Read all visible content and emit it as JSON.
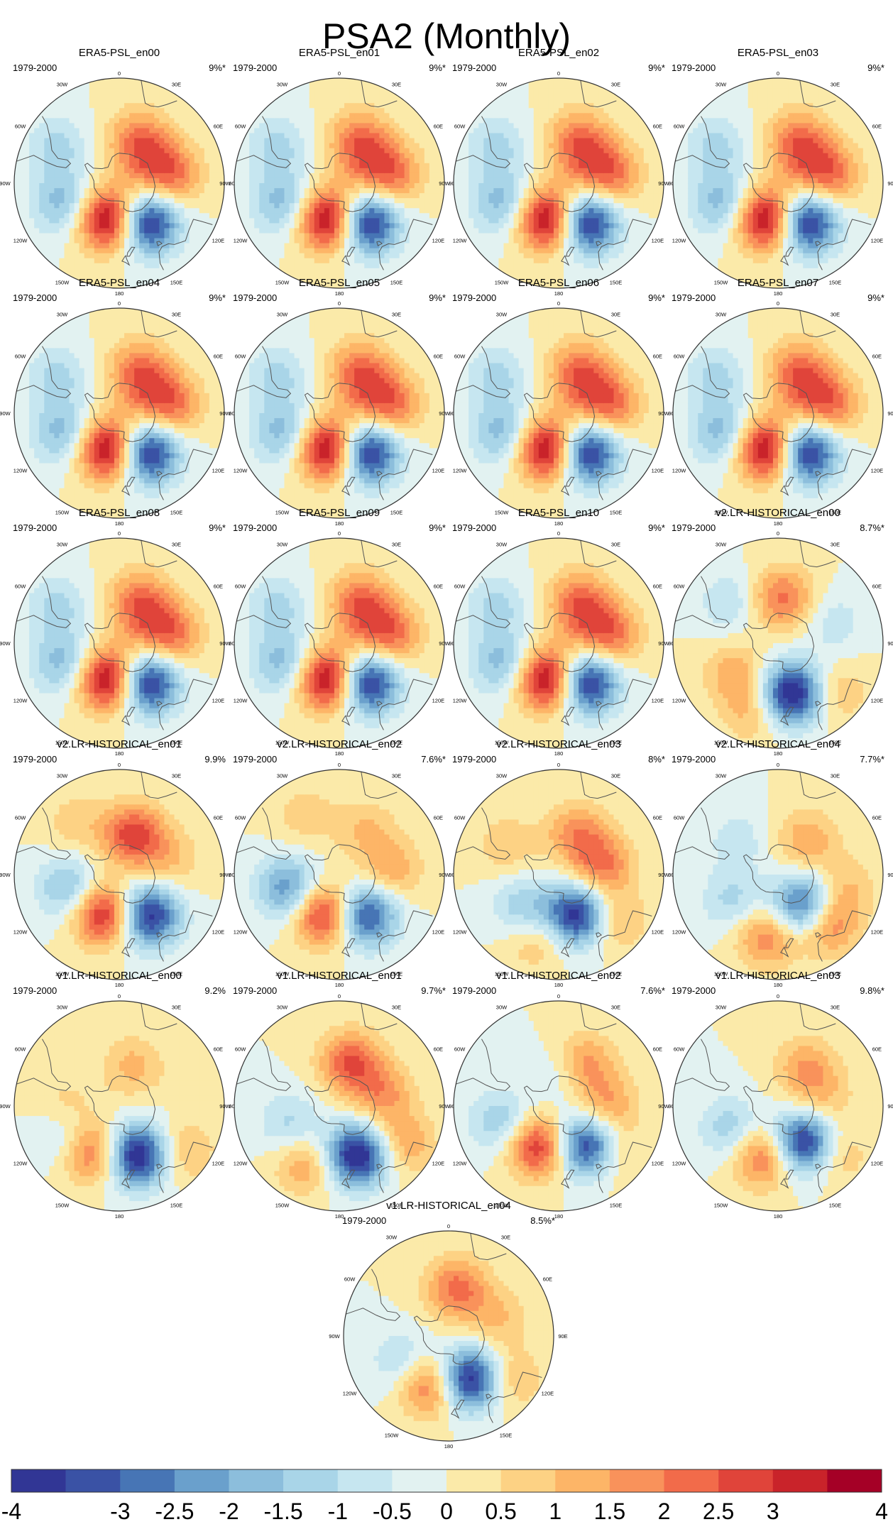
{
  "title": "PSA2 (Monthly)",
  "chart_data": {
    "type": "polar-stereographic contour map (EOF pattern)",
    "title": "PSA2 (Monthly)",
    "region": "Southern Hemisphere",
    "longitude_labels": [
      "0",
      "30E",
      "60E",
      "90E",
      "120E",
      "150E",
      "180",
      "150W",
      "120W",
      "90W",
      "60W",
      "30W"
    ],
    "panels": [
      {
        "name": "ERA5-PSL_en00",
        "period": "1979-2000",
        "variance": "9%*",
        "pattern": "era5"
      },
      {
        "name": "ERA5-PSL_en01",
        "period": "1979-2000",
        "variance": "9%*",
        "pattern": "era5"
      },
      {
        "name": "ERA5-PSL_en02",
        "period": "1979-2000",
        "variance": "9%*",
        "pattern": "era5"
      },
      {
        "name": "ERA5-PSL_en03",
        "period": "1979-2000",
        "variance": "9%*",
        "pattern": "era5"
      },
      {
        "name": "ERA5-PSL_en04",
        "period": "1979-2000",
        "variance": "9%*",
        "pattern": "era5"
      },
      {
        "name": "ERA5-PSL_en05",
        "period": "1979-2000",
        "variance": "9%*",
        "pattern": "era5"
      },
      {
        "name": "ERA5-PSL_en06",
        "period": "1979-2000",
        "variance": "9%*",
        "pattern": "era5"
      },
      {
        "name": "ERA5-PSL_en07",
        "period": "1979-2000",
        "variance": "9%*",
        "pattern": "era5"
      },
      {
        "name": "ERA5-PSL_en08",
        "period": "1979-2000",
        "variance": "9%*",
        "pattern": "era5"
      },
      {
        "name": "ERA5-PSL_en09",
        "period": "1979-2000",
        "variance": "9%*",
        "pattern": "era5"
      },
      {
        "name": "ERA5-PSL_en10",
        "period": "1979-2000",
        "variance": "9%*",
        "pattern": "era5"
      },
      {
        "name": "v2.LR-HISTORICAL_en00",
        "period": "1979-2000",
        "variance": "8.7%*",
        "pattern": "v2en00"
      },
      {
        "name": "v2.LR-HISTORICAL_en01",
        "period": "1979-2000",
        "variance": "9.9%",
        "pattern": "v2en01"
      },
      {
        "name": "v2.LR-HISTORICAL_en02",
        "period": "1979-2000",
        "variance": "7.6%*",
        "pattern": "v2en02"
      },
      {
        "name": "v2.LR-HISTORICAL_en03",
        "period": "1979-2000",
        "variance": "8%*",
        "pattern": "v2en03"
      },
      {
        "name": "v2.LR-HISTORICAL_en04",
        "period": "1979-2000",
        "variance": "7.7%*",
        "pattern": "v2en04"
      },
      {
        "name": "v1.LR-HISTORICAL_en00",
        "period": "1979-2000",
        "variance": "9.2%",
        "pattern": "v1en00"
      },
      {
        "name": "v1.LR-HISTORICAL_en01",
        "period": "1979-2000",
        "variance": "9.7%*",
        "pattern": "v1en01"
      },
      {
        "name": "v1.LR-HISTORICAL_en02",
        "period": "1979-2000",
        "variance": "7.6%*",
        "pattern": "v1en02"
      },
      {
        "name": "v1.LR-HISTORICAL_en03",
        "period": "1979-2000",
        "variance": "9.8%*",
        "pattern": "v1en03"
      },
      {
        "name": "v1.LR-HISTORICAL_en04",
        "period": "1979-2000",
        "variance": "8.5%*",
        "pattern": "v1en04"
      }
    ],
    "patterns": {
      "era5": [
        {
          "lon": 145,
          "lat": -58,
          "value": -4.3
        },
        {
          "lon": 195,
          "lat": -65,
          "value": 4.3
        },
        {
          "lon": 25,
          "lat": -58,
          "value": 2.0
        },
        {
          "lon": 80,
          "lat": -55,
          "value": 2.1
        },
        {
          "lon": 250,
          "lat": -50,
          "value": -1.8
        },
        {
          "lon": 300,
          "lat": -42,
          "value": -1.2
        },
        {
          "lon": 60,
          "lat": -70,
          "value": 0.8
        }
      ],
      "v2en00": [
        {
          "lon": 165,
          "lat": -55,
          "value": -4.3
        },
        {
          "lon": 235,
          "lat": -55,
          "value": 1.3
        },
        {
          "lon": 310,
          "lat": -48,
          "value": -1.0
        },
        {
          "lon": 5,
          "lat": -60,
          "value": 2.2
        },
        {
          "lon": 70,
          "lat": -50,
          "value": -0.8
        },
        {
          "lon": 130,
          "lat": -38,
          "value": 1.0
        },
        {
          "lon": 200,
          "lat": -42,
          "value": 1.2
        }
      ],
      "v2en01": [
        {
          "lon": 145,
          "lat": -57,
          "value": -4.0
        },
        {
          "lon": 200,
          "lat": -62,
          "value": 3.5
        },
        {
          "lon": 20,
          "lat": -62,
          "value": 2.8
        },
        {
          "lon": 255,
          "lat": -55,
          "value": -1.8
        },
        {
          "lon": 75,
          "lat": -55,
          "value": 1.0
        },
        {
          "lon": 320,
          "lat": -45,
          "value": 0.8
        }
      ],
      "v2en02": [
        {
          "lon": 148,
          "lat": -58,
          "value": -3.6
        },
        {
          "lon": 200,
          "lat": -62,
          "value": 3.4
        },
        {
          "lon": 255,
          "lat": -55,
          "value": -2.5
        },
        {
          "lon": 30,
          "lat": -55,
          "value": 1.0
        },
        {
          "lon": 85,
          "lat": -55,
          "value": 1.4
        },
        {
          "lon": 330,
          "lat": -45,
          "value": 0.8
        }
      ],
      "v2en03": [
        {
          "lon": 155,
          "lat": -60,
          "value": -4.0
        },
        {
          "lon": 225,
          "lat": -58,
          "value": -1.6
        },
        {
          "lon": 200,
          "lat": -45,
          "value": 1.2
        },
        {
          "lon": 130,
          "lat": -42,
          "value": 1.4
        },
        {
          "lon": 25,
          "lat": -60,
          "value": 1.8
        },
        {
          "lon": 80,
          "lat": -60,
          "value": 2.0
        },
        {
          "lon": 300,
          "lat": -50,
          "value": 0.9
        }
      ],
      "v2en04": [
        {
          "lon": 140,
          "lat": -62,
          "value": -3.8
        },
        {
          "lon": 135,
          "lat": -45,
          "value": 2.6
        },
        {
          "lon": 190,
          "lat": -48,
          "value": 2.0
        },
        {
          "lon": 240,
          "lat": -55,
          "value": -1.2
        },
        {
          "lon": 40,
          "lat": -60,
          "value": 1.4
        },
        {
          "lon": 310,
          "lat": -55,
          "value": -0.8
        },
        {
          "lon": 100,
          "lat": -45,
          "value": 1.0
        }
      ],
      "v1en00": [
        {
          "lon": 160,
          "lat": -55,
          "value": -4.3
        },
        {
          "lon": 210,
          "lat": -55,
          "value": 2.6
        },
        {
          "lon": 125,
          "lat": -38,
          "value": 1.2
        },
        {
          "lon": 240,
          "lat": -50,
          "value": -1.2
        },
        {
          "lon": 20,
          "lat": -62,
          "value": 1.2
        },
        {
          "lon": 270,
          "lat": -55,
          "value": 0.8
        }
      ],
      "v1en01": [
        {
          "lon": 160,
          "lat": -55,
          "value": -4.3
        },
        {
          "lon": 15,
          "lat": -60,
          "value": 2.5
        },
        {
          "lon": 120,
          "lat": -40,
          "value": 1.5
        },
        {
          "lon": 210,
          "lat": -45,
          "value": 1.5
        },
        {
          "lon": 250,
          "lat": -55,
          "value": -1.2
        },
        {
          "lon": 75,
          "lat": -60,
          "value": 1.6
        }
      ],
      "v1en02": [
        {
          "lon": 145,
          "lat": -58,
          "value": -4.0
        },
        {
          "lon": 205,
          "lat": -60,
          "value": 3.2
        },
        {
          "lon": 30,
          "lat": -58,
          "value": 2.0
        },
        {
          "lon": 90,
          "lat": -58,
          "value": 1.6
        },
        {
          "lon": 255,
          "lat": -50,
          "value": -1.5
        },
        {
          "lon": 10,
          "lat": -68,
          "value": -1.0
        },
        {
          "lon": 130,
          "lat": -40,
          "value": 1.0
        }
      ],
      "v1en03": [
        {
          "lon": 145,
          "lat": -60,
          "value": -4.2
        },
        {
          "lon": 195,
          "lat": -55,
          "value": 2.4
        },
        {
          "lon": 130,
          "lat": -40,
          "value": 1.2
        },
        {
          "lon": 35,
          "lat": -58,
          "value": 1.4
        },
        {
          "lon": 245,
          "lat": -55,
          "value": -1.4
        },
        {
          "lon": 80,
          "lat": -60,
          "value": 1.0
        }
      ],
      "v1en04": [
        {
          "lon": 155,
          "lat": -58,
          "value": -4.3
        },
        {
          "lon": 200,
          "lat": -55,
          "value": 2.6
        },
        {
          "lon": 10,
          "lat": -58,
          "value": 2.2
        },
        {
          "lon": 125,
          "lat": -40,
          "value": 1.2
        },
        {
          "lon": 240,
          "lat": -55,
          "value": -1.2
        },
        {
          "lon": 70,
          "lat": -55,
          "value": 1.0
        }
      ]
    },
    "colorbar": {
      "levels": [
        -4,
        -3.5,
        -3,
        -2.5,
        -2,
        -1.5,
        -1,
        -0.5,
        0,
        0.5,
        1,
        1.5,
        2,
        2.5,
        3,
        3.5,
        4
      ],
      "tick_labels": [
        "-4",
        "-3",
        "-2.5",
        "-2",
        "-1.5",
        "-1",
        "-0.5",
        "0",
        "0.5",
        "1",
        "1.5",
        "2",
        "2.5",
        "3",
        "4"
      ],
      "colors": [
        "#313695",
        "#3a52a5",
        "#4775b5",
        "#6aa0cc",
        "#8cbedc",
        "#a9d5e8",
        "#c6e6f0",
        "#e2f2f1",
        "#fbeaa9",
        "#fdd284",
        "#fdb567",
        "#f9925b",
        "#f26b4a",
        "#e0443a",
        "#c9232a",
        "#a50026"
      ]
    }
  }
}
